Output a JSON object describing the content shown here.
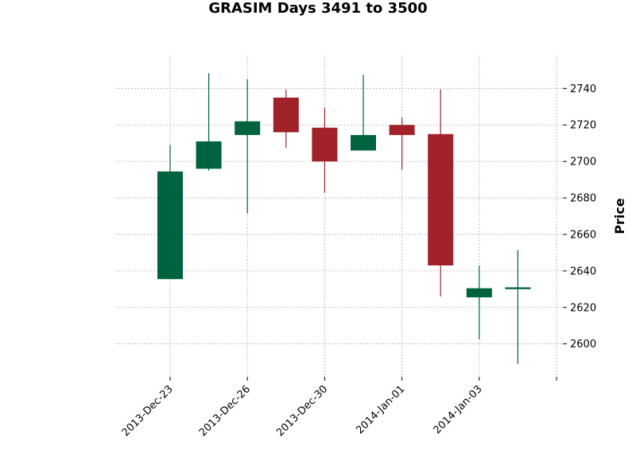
{
  "chart_data": {
    "type": "candlestick",
    "title": "GRASIM Days 3491 to 3500",
    "xlabel": "",
    "ylabel": "Price",
    "ylim": [
      2582,
      2758
    ],
    "yticks": [
      2600,
      2620,
      2640,
      2660,
      2680,
      2700,
      2720,
      2740
    ],
    "xtick_labels": [
      "2013-Dec-23",
      "2013-Dec-26",
      "2013-Dec-30",
      "2014-Jan-01",
      "2014-Jan-03",
      ""
    ],
    "xtick_positions": [
      0,
      2,
      4,
      6,
      8,
      10
    ],
    "grid": true,
    "colors": {
      "up": "#006340",
      "down": "#a02128"
    },
    "candles": [
      {
        "open": 2635.5,
        "high": 2709,
        "low": 2635.5,
        "close": 2694.5
      },
      {
        "open": 2696,
        "high": 2748.5,
        "low": 2695,
        "close": 2711
      },
      {
        "open": 2714.5,
        "high": 2745,
        "low": 2671.5,
        "close": 2722
      },
      {
        "open": 2735,
        "high": 2739.5,
        "low": 2707.5,
        "close": 2716
      },
      {
        "open": 2718.5,
        "high": 2729.5,
        "low": 2683,
        "close": 2700
      },
      {
        "open": 2706,
        "high": 2747.5,
        "low": 2706,
        "close": 2714.5
      },
      {
        "open": 2720,
        "high": 2724,
        "low": 2695.5,
        "close": 2714.5
      },
      {
        "open": 2715,
        "high": 2739.5,
        "low": 2626,
        "close": 2643
      },
      {
        "open": 2625.5,
        "high": 2643,
        "low": 2602.5,
        "close": 2630.5
      },
      {
        "open": 2630,
        "high": 2651.5,
        "low": 2589,
        "close": 2631
      }
    ]
  }
}
